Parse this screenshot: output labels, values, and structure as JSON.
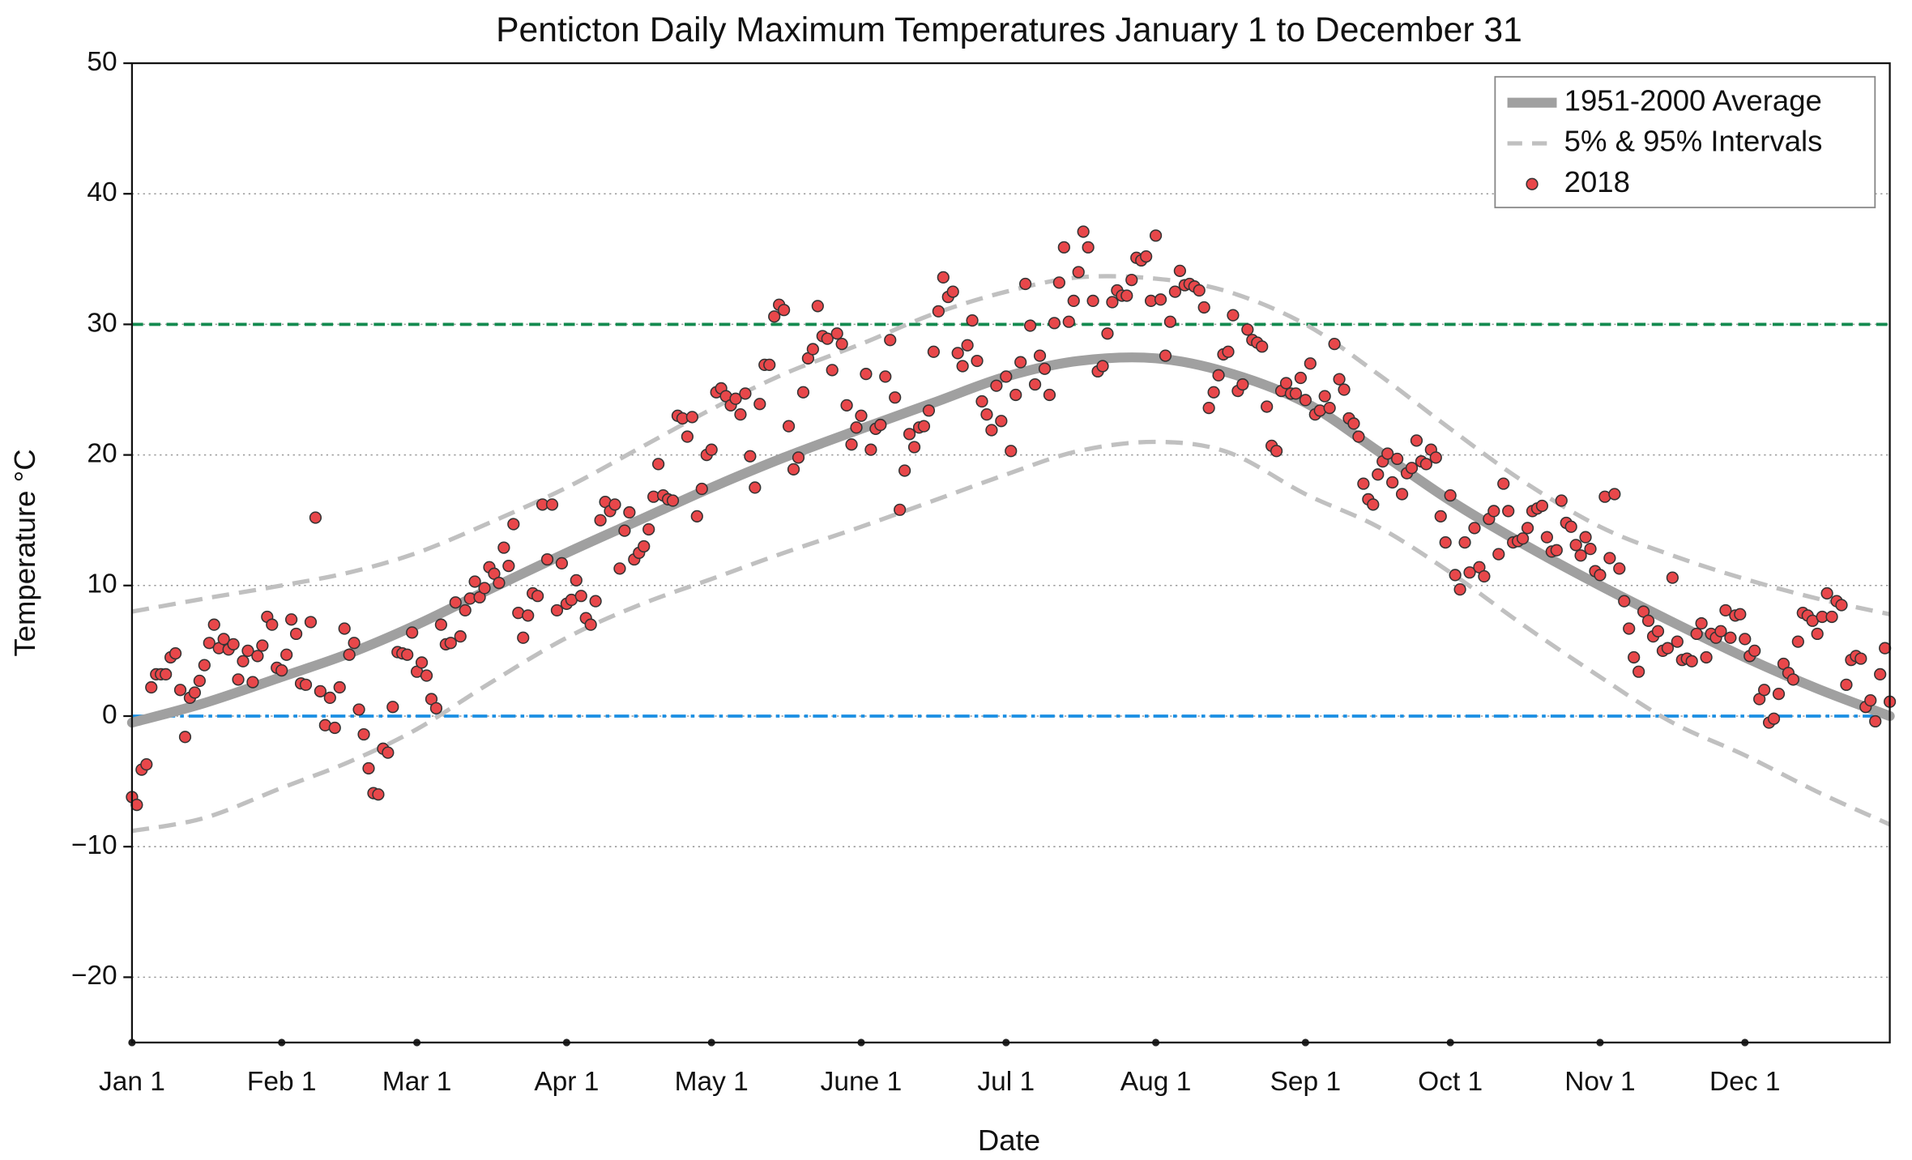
{
  "chart_data": {
    "type": "line",
    "title": "Penticton Daily Maximum Temperatures January 1 to December 31",
    "xlabel": "Date",
    "ylabel": "Temperature °C",
    "xlim": [
      1,
      365
    ],
    "ylim": [
      -25,
      50
    ],
    "xticks": [
      {
        "value": 1,
        "label": "Jan 1"
      },
      {
        "value": 32,
        "label": "Feb 1"
      },
      {
        "value": 60,
        "label": "Mar 1"
      },
      {
        "value": 91,
        "label": "Apr 1"
      },
      {
        "value": 121,
        "label": "May 1"
      },
      {
        "value": 152,
        "label": "June 1"
      },
      {
        "value": 182,
        "label": "Jul 1"
      },
      {
        "value": 213,
        "label": "Aug 1"
      },
      {
        "value": 244,
        "label": "Sep 1"
      },
      {
        "value": 274,
        "label": "Oct 1"
      },
      {
        "value": 305,
        "label": "Nov 1"
      },
      {
        "value": 335,
        "label": "Dec 1"
      }
    ],
    "yticks": [
      {
        "value": -20,
        "label": "−20"
      },
      {
        "value": -10,
        "label": "−10"
      },
      0,
      10,
      20,
      30,
      40,
      50
    ],
    "grid": true,
    "legend": "upper right",
    "reference_lines": [
      {
        "value": 30,
        "color": "#138a4f",
        "style": "dashed"
      },
      {
        "value": 0,
        "color": "#1a8fe3",
        "style": "dashdot"
      }
    ],
    "series": [
      {
        "name": "1951-2000 Average",
        "kind": "line",
        "color": "#a0a0a0",
        "x": [
          1,
          16,
          32,
          46,
          60,
          75,
          91,
          106,
          121,
          136,
          152,
          167,
          182,
          197,
          213,
          228,
          244,
          259,
          274,
          289,
          305,
          320,
          335,
          350,
          365
        ],
        "values": [
          -0.5,
          1.0,
          3.0,
          4.8,
          7.0,
          9.7,
          12.5,
          15.0,
          17.5,
          19.8,
          22.0,
          24.0,
          26.0,
          27.2,
          27.4,
          26.3,
          24.0,
          20.3,
          16.5,
          13.2,
          10.0,
          7.2,
          4.5,
          2.1,
          0.0
        ]
      },
      {
        "name": "5% & 95% Intervals",
        "kind": "band",
        "color": "#c0c0c0",
        "x": [
          1,
          16,
          32,
          46,
          60,
          75,
          91,
          106,
          121,
          136,
          152,
          167,
          182,
          197,
          213,
          228,
          244,
          259,
          274,
          289,
          305,
          320,
          335,
          350,
          365
        ],
        "upper": [
          8.0,
          9.0,
          10.0,
          11.0,
          12.5,
          14.8,
          17.5,
          20.5,
          23.5,
          26.2,
          28.5,
          30.8,
          32.5,
          33.6,
          33.5,
          32.5,
          30.0,
          26.2,
          22.0,
          18.0,
          14.5,
          12.3,
          10.5,
          9.0,
          7.8
        ],
        "lower": [
          -8.8,
          -7.8,
          -5.5,
          -3.5,
          -1.0,
          2.5,
          6.0,
          8.5,
          10.5,
          12.5,
          14.5,
          16.5,
          18.5,
          20.3,
          21.0,
          20.2,
          17.0,
          14.5,
          11.0,
          7.0,
          3.0,
          -0.5,
          -3.0,
          -5.8,
          -8.3
        ]
      },
      {
        "name": "2018",
        "kind": "scatter",
        "color": "#e8474a",
        "x": [
          1,
          2,
          3,
          4,
          5,
          6,
          7,
          8,
          9,
          10,
          11,
          12,
          13,
          14,
          15,
          16,
          17,
          18,
          19,
          20,
          21,
          22,
          23,
          24,
          25,
          26,
          27,
          28,
          29,
          30,
          31,
          32,
          33,
          34,
          35,
          36,
          37,
          38,
          39,
          40,
          41,
          42,
          43,
          44,
          45,
          46,
          47,
          48,
          49,
          50,
          51,
          52,
          53,
          54,
          55,
          56,
          57,
          58,
          59,
          60,
          61,
          62,
          63,
          64,
          65,
          66,
          67,
          68,
          69,
          70,
          71,
          72,
          73,
          74,
          75,
          76,
          77,
          78,
          79,
          80,
          81,
          82,
          83,
          84,
          85,
          86,
          87,
          88,
          89,
          90,
          91,
          92,
          93,
          94,
          95,
          96,
          97,
          98,
          99,
          100,
          101,
          102,
          103,
          104,
          105,
          106,
          107,
          108,
          109,
          110,
          111,
          112,
          113,
          114,
          115,
          116,
          117,
          118,
          119,
          120,
          121,
          122,
          123,
          124,
          125,
          126,
          127,
          128,
          129,
          130,
          131,
          132,
          133,
          134,
          135,
          136,
          137,
          138,
          139,
          140,
          141,
          142,
          143,
          144,
          145,
          146,
          147,
          148,
          149,
          150,
          151,
          152,
          153,
          154,
          155,
          156,
          157,
          158,
          159,
          160,
          161,
          162,
          163,
          164,
          165,
          166,
          167,
          168,
          169,
          170,
          171,
          172,
          173,
          174,
          175,
          176,
          177,
          178,
          179,
          180,
          181,
          182,
          183,
          184,
          185,
          186,
          187,
          188,
          189,
          190,
          191,
          192,
          193,
          194,
          195,
          196,
          197,
          198,
          199,
          200,
          201,
          202,
          203,
          204,
          205,
          206,
          207,
          208,
          209,
          210,
          211,
          212,
          213,
          214,
          215,
          216,
          217,
          218,
          219,
          220,
          221,
          222,
          223,
          224,
          225,
          226,
          227,
          228,
          229,
          230,
          231,
          232,
          233,
          234,
          235,
          236,
          237,
          238,
          239,
          240,
          241,
          242,
          243,
          244,
          245,
          246,
          247,
          248,
          249,
          250,
          251,
          252,
          253,
          254,
          255,
          256,
          257,
          258,
          259,
          260,
          261,
          262,
          263,
          264,
          265,
          266,
          267,
          268,
          269,
          270,
          271,
          272,
          273,
          274,
          275,
          276,
          277,
          278,
          279,
          280,
          281,
          282,
          283,
          284,
          285,
          286,
          287,
          288,
          289,
          290,
          291,
          292,
          293,
          294,
          295,
          296,
          297,
          298,
          299,
          300,
          301,
          302,
          303,
          304,
          305,
          306,
          307,
          308,
          309,
          310,
          311,
          312,
          313,
          314,
          315,
          316,
          317,
          318,
          319,
          320,
          321,
          322,
          323,
          324,
          325,
          326,
          327,
          328,
          329,
          330,
          331,
          332,
          333,
          334,
          335,
          336,
          337,
          338,
          339,
          340,
          341,
          342,
          343,
          344,
          345,
          346,
          347,
          348,
          349,
          350,
          351,
          352,
          353,
          354,
          355,
          356,
          357,
          358,
          359,
          360,
          361,
          362,
          363,
          364,
          365
        ],
        "values": [
          -6.2,
          -6.8,
          -4.1,
          -3.7,
          2.2,
          3.2,
          3.2,
          3.2,
          4.5,
          4.8,
          2.0,
          -1.6,
          1.4,
          1.8,
          2.7,
          3.9,
          5.6,
          7.0,
          5.2,
          5.9,
          5.1,
          5.5,
          2.8,
          4.2,
          5.0,
          2.6,
          4.6,
          5.4,
          7.6,
          7.0,
          3.7,
          3.5,
          4.7,
          7.4,
          6.3,
          2.5,
          2.4,
          7.2,
          15.2,
          1.9,
          -0.7,
          1.4,
          -0.9,
          2.2,
          6.7,
          4.7,
          5.6,
          0.5,
          -1.4,
          -4.0,
          -5.9,
          -6.0,
          -2.5,
          -2.8,
          0.7,
          4.9,
          4.8,
          4.7,
          6.4,
          3.4,
          4.1,
          3.1,
          1.3,
          0.6,
          7.0,
          5.5,
          5.6,
          8.7,
          6.1,
          8.1,
          9.0,
          10.3,
          9.1,
          9.8,
          11.4,
          10.9,
          10.2,
          12.9,
          11.5,
          14.7,
          7.9,
          6.0,
          7.7,
          9.4,
          9.2,
          16.2,
          12.0,
          16.2,
          8.1,
          11.7,
          8.6,
          8.9,
          10.4,
          9.2,
          7.5,
          7.0,
          8.8,
          15.0,
          16.4,
          15.7,
          16.2,
          11.3,
          14.2,
          15.6,
          12.0,
          12.5,
          13.0,
          14.3,
          16.8,
          19.3,
          16.9,
          16.6,
          16.5,
          23.0,
          22.8,
          21.4,
          22.9,
          15.3,
          17.4,
          20.0,
          20.4,
          24.8,
          25.1,
          24.5,
          23.8,
          24.3,
          23.1,
          24.7,
          19.9,
          17.5,
          23.9,
          26.9,
          26.9,
          30.6,
          31.5,
          31.1,
          22.2,
          18.9,
          19.8,
          24.8,
          27.4,
          28.1,
          31.4,
          29.1,
          28.9,
          26.5,
          29.3,
          28.5,
          23.8,
          20.8,
          22.1,
          23.0,
          26.2,
          20.4,
          22.0,
          22.3,
          26.0,
          28.8,
          24.4,
          15.8,
          18.8,
          21.6,
          20.6,
          22.1,
          22.2,
          23.4,
          27.9,
          31.0,
          33.6,
          32.1,
          32.5,
          27.8,
          26.8,
          28.4,
          30.3,
          27.2,
          24.1,
          23.1,
          21.9,
          25.3,
          22.6,
          26.0,
          20.3,
          24.6,
          27.1,
          33.1,
          29.9,
          25.4,
          27.6,
          26.6,
          24.6,
          30.1,
          33.2,
          35.9,
          30.2,
          31.8,
          34.0,
          37.1,
          35.9,
          31.8,
          26.4,
          26.8,
          29.3,
          31.7,
          32.6,
          32.2,
          32.2,
          33.4,
          35.1,
          34.9,
          35.2,
          31.8,
          36.8,
          31.9,
          27.6,
          30.2,
          32.5,
          34.1,
          33.0,
          33.1,
          32.9,
          32.6,
          31.3,
          23.6,
          24.8,
          26.1,
          27.7,
          27.9,
          30.7,
          24.9,
          25.4,
          29.6,
          28.8,
          28.6,
          28.3,
          23.7,
          20.7,
          20.3,
          24.9,
          25.5,
          24.7,
          24.7,
          25.9,
          24.2,
          27.0,
          23.1,
          23.4,
          24.5,
          23.6,
          28.5,
          25.8,
          25.0,
          22.8,
          22.4,
          21.4,
          17.8,
          16.6,
          16.2,
          18.5,
          19.5,
          20.1,
          17.9,
          19.7,
          17.0,
          18.6,
          19.0,
          21.1,
          19.5,
          19.3,
          20.4,
          19.8,
          15.3,
          13.3,
          16.9,
          10.8,
          9.7,
          13.3,
          11.0,
          14.4,
          11.4,
          10.7,
          15.1,
          15.7,
          12.4,
          17.8,
          15.7,
          13.3,
          13.4,
          13.6,
          14.4,
          15.7,
          15.9,
          16.1,
          13.7,
          12.6,
          12.7,
          16.5,
          14.8,
          14.5,
          13.1,
          12.3,
          13.7,
          12.8,
          11.1,
          10.8,
          16.8,
          12.1,
          17.0,
          11.3,
          8.8,
          6.7,
          4.5,
          3.4,
          8.0,
          7.3,
          6.1,
          6.5,
          5.0,
          5.2,
          10.6,
          5.7,
          4.3,
          4.4,
          4.2,
          6.3,
          7.1,
          4.5,
          6.3,
          6.0,
          6.5,
          8.1,
          6.0,
          7.7,
          7.8,
          5.9,
          4.6,
          5.0,
          1.3,
          2.0,
          -0.5,
          -0.2,
          1.7,
          4.0,
          3.3,
          2.8,
          5.7,
          7.9,
          7.7,
          7.3,
          6.3,
          7.6,
          9.4,
          7.6,
          8.8,
          8.5,
          2.4,
          4.3,
          4.6,
          4.4,
          0.7,
          1.2,
          -0.4,
          3.2,
          5.2,
          1.1
        ]
      }
    ]
  }
}
